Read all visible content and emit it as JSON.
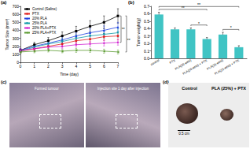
{
  "chart_data": [
    {
      "type": "line",
      "title": "(a)",
      "x_label": "Time (day)",
      "y_label": "Tumor Size (mm³)",
      "x": [
        0,
        1,
        2,
        3,
        4,
        5,
        6,
        7
      ],
      "series": [
        {
          "name": "Control (Saline)",
          "color": "#000000",
          "marker": "square",
          "values": [
            150,
            220,
            270,
            330,
            390,
            450,
            500,
            580
          ],
          "errors": [
            20,
            30,
            40,
            50,
            60,
            70,
            80,
            90
          ]
        },
        {
          "name": "PTX",
          "color": "#e02020",
          "marker": "circle",
          "values": [
            140,
            170,
            200,
            230,
            270,
            290,
            320,
            330
          ],
          "errors": [
            20,
            25,
            30,
            35,
            40,
            40,
            45,
            50
          ]
        },
        {
          "name": "20% PLA",
          "color": "#2040e0",
          "marker": "triangle",
          "values": [
            150,
            200,
            240,
            280,
            330,
            370,
            400,
            440
          ],
          "errors": [
            20,
            25,
            30,
            40,
            45,
            50,
            55,
            60
          ]
        },
        {
          "name": "25% PLA",
          "color": "#109aa8",
          "marker": "triangle_down",
          "values": [
            140,
            190,
            230,
            260,
            300,
            330,
            350,
            370
          ],
          "errors": [
            20,
            25,
            30,
            35,
            40,
            45,
            50,
            55
          ]
        },
        {
          "name": "20% PLA+PTX",
          "color": "#d020d0",
          "marker": "diamond",
          "values": [
            150,
            170,
            190,
            200,
            220,
            230,
            240,
            250
          ],
          "errors": [
            20,
            20,
            25,
            25,
            30,
            30,
            35,
            35
          ]
        },
        {
          "name": "25% PLA+PTX",
          "color": "#5a9a30",
          "marker": "triangle_left",
          "values": [
            130,
            140,
            150,
            140,
            150,
            150,
            140,
            130
          ],
          "errors": [
            15,
            20,
            20,
            20,
            25,
            25,
            25,
            25
          ]
        }
      ],
      "xlim": [
        0,
        7
      ],
      "xticks": [
        0,
        1,
        2,
        3,
        4,
        5,
        6,
        7
      ],
      "ylim": [
        0,
        700
      ],
      "yticks": [
        0,
        100,
        200,
        300,
        400,
        500,
        600,
        700
      ],
      "annotations": [
        {
          "between": [
            "Control (Saline)",
            "20% PLA+PTX"
          ],
          "label": "**"
        },
        {
          "between": [
            "Control (Saline)",
            "25% PLA+PTX"
          ],
          "label": "**"
        }
      ],
      "grid": false,
      "legend": "upper left"
    },
    {
      "type": "bar",
      "title": "(b)",
      "y_label": "Tumor weight(g)",
      "categories": [
        "control",
        "PTX",
        "PLA(20 wt%)",
        "PLA(20 wt%) + PTX",
        "PLA(25 wt%)",
        "PLA(25 wt%) + PTX"
      ],
      "values": [
        0.59,
        0.39,
        0.39,
        0.26,
        0.32,
        0.15
      ],
      "errors": [
        0.03,
        0.02,
        0.02,
        0.02,
        0.03,
        0.02
      ],
      "color": "#40c4c4",
      "ylim": [
        0,
        0.7
      ],
      "yticks": [
        {
          "value": 0,
          "label": "0.0"
        },
        0.1,
        0.2,
        0.3,
        0.4,
        0.5,
        0.6,
        0.7
      ],
      "significance": [
        {
          "pair": [
            2,
            3
          ],
          "label": "*"
        },
        {
          "pair": [
            4,
            5
          ],
          "label": "*"
        },
        {
          "pair": [
            0,
            3
          ],
          "label": "**"
        },
        {
          "pair": [
            0,
            5
          ],
          "label": "**"
        }
      ],
      "grid": false
    }
  ],
  "photos": {
    "c": {
      "label": "(c)",
      "captions": [
        "Formed tumour",
        "Injection site 1 day after injection"
      ]
    },
    "d": {
      "label": "(d)",
      "captions": [
        "Control",
        "PLA (25%) + PTX"
      ],
      "scale_bar": "0.5 cm"
    }
  }
}
